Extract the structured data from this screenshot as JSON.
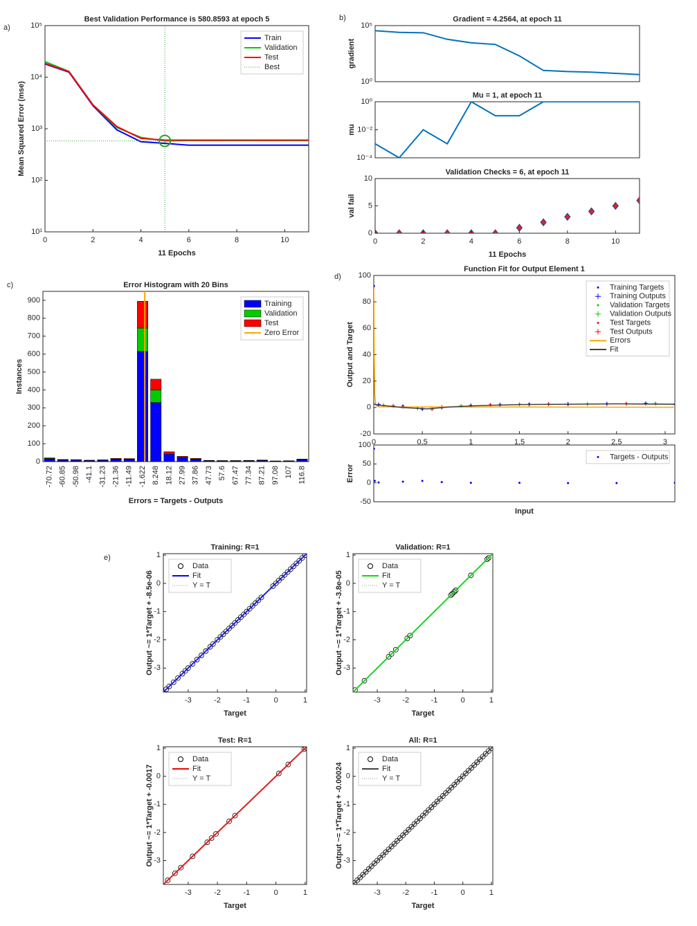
{
  "panel_labels": [
    "a)",
    "b)",
    "c)",
    "d)",
    "e)"
  ],
  "chart_data": [
    {
      "type": "line",
      "title": "Best Validation Performance is 580.8593 at epoch 5",
      "xlabel": "11 Epochs",
      "ylabel": "Mean Squared Error  (mse)",
      "x": [
        0,
        1,
        2,
        3,
        4,
        5,
        6,
        7,
        8,
        9,
        10,
        11
      ],
      "xlim": [
        0,
        11
      ],
      "xticks": [
        0,
        2,
        4,
        6,
        8,
        10
      ],
      "ylog": true,
      "ylim": [
        10,
        100000
      ],
      "yticks": [
        {
          "value": 10,
          "label": "10¹"
        },
        {
          "value": 100,
          "label": "10²"
        },
        {
          "value": 1000,
          "label": "10³"
        },
        {
          "value": 10000,
          "label": "10⁴"
        },
        {
          "value": 100000,
          "label": "10⁵"
        }
      ],
      "series": [
        {
          "name": "Train",
          "color": "#0000ff",
          "values": [
            18000,
            12500,
            2800,
            950,
            560,
            520,
            480,
            480,
            480,
            480,
            480,
            480
          ]
        },
        {
          "name": "Validation",
          "color": "#00cc00",
          "values": [
            20000,
            13000,
            2900,
            1050,
            680,
            580.8593,
            590,
            590,
            590,
            590,
            590,
            590
          ]
        },
        {
          "name": "Test",
          "color": "#ff0000",
          "values": [
            18500,
            12800,
            2900,
            1100,
            650,
            600,
            600,
            600,
            600,
            600,
            600,
            600
          ]
        }
      ],
      "best": {
        "name": "Best",
        "x": 5,
        "y": 580.8593,
        "color": "#2ca02c"
      },
      "legend": "top-right"
    },
    {
      "type": "line",
      "title": "Gradient = 4.2564, at epoch 11",
      "ylabel": "gradient",
      "x": [
        0,
        1,
        2,
        3,
        4,
        5,
        6,
        7,
        8,
        9,
        10,
        11
      ],
      "xlim": [
        0,
        11
      ],
      "ylog": true,
      "ylim": [
        1,
        100000
      ],
      "yticks": [
        {
          "value": 1,
          "label": "10⁰"
        },
        {
          "value": 100000,
          "label": "10⁵"
        }
      ],
      "color": "#0072bd",
      "values": [
        35000,
        25000,
        23000,
        6000,
        2900,
        2100,
        200,
        10,
        8,
        7,
        5.5,
        4.2564
      ]
    },
    {
      "type": "line",
      "title": "Mu = 1, at epoch 11",
      "ylabel": "mu",
      "x": [
        0,
        1,
        2,
        3,
        4,
        5,
        6,
        7,
        8,
        9,
        10,
        11
      ],
      "xlim": [
        0,
        11
      ],
      "ylog": true,
      "ylim": [
        0.0001,
        1
      ],
      "yticks": [
        {
          "value": 0.0001,
          "label": "10⁻⁴"
        },
        {
          "value": 0.01,
          "label": "10⁻²"
        },
        {
          "value": 1,
          "label": "10⁰"
        }
      ],
      "color": "#0072bd",
      "values": [
        0.001,
        0.0001,
        0.01,
        0.001,
        1,
        0.1,
        0.1,
        1,
        1,
        1,
        1,
        1
      ]
    },
    {
      "type": "scatter",
      "title": "Validation Checks = 6, at epoch 11",
      "ylabel": "val fail",
      "xlabel": "11 Epochs",
      "x": [
        0,
        1,
        2,
        3,
        4,
        5,
        6,
        7,
        8,
        9,
        10,
        11
      ],
      "xlim": [
        0,
        11
      ],
      "xticks": [
        0,
        2,
        4,
        6,
        8,
        10
      ],
      "ylim": [
        0,
        10
      ],
      "yticks": [
        0,
        5,
        10
      ],
      "color": "#d62728",
      "values": [
        0,
        0,
        0,
        0,
        0,
        0,
        1,
        2,
        3,
        4,
        5,
        6
      ]
    },
    {
      "type": "bar",
      "stacked": true,
      "title": "Error Histogram with 20 Bins",
      "xlabel": "Errors = Targets - Outputs",
      "ylabel": "Instances",
      "categories": [
        "-70.72",
        "-60.85",
        "-50.98",
        "-41.1",
        "-31.23",
        "-21.36",
        "-11.49",
        "-1.622",
        "8.248",
        "18.12",
        "27.99",
        "37.86",
        "47.73",
        "57.6",
        "67.47",
        "77.34",
        "87.21",
        "97.08",
        "107",
        "116.8"
      ],
      "ylim": [
        0,
        950
      ],
      "yticks": [
        0,
        100,
        200,
        300,
        400,
        500,
        600,
        700,
        800,
        900
      ],
      "series": [
        {
          "name": "Training",
          "color": "#0000ff",
          "values": [
            15,
            8,
            8,
            6,
            7,
            12,
            12,
            615,
            330,
            42,
            22,
            12,
            5,
            4,
            4,
            5,
            6,
            2,
            3,
            10
          ]
        },
        {
          "name": "Validation",
          "color": "#00cc00",
          "values": [
            3,
            2,
            2,
            1,
            2,
            3,
            2,
            130,
            70,
            5,
            4,
            3,
            1,
            1,
            1,
            1,
            1,
            1,
            1,
            2
          ]
        },
        {
          "name": "Test",
          "color": "#ff0000",
          "values": [
            3,
            2,
            1,
            1,
            1,
            3,
            3,
            150,
            60,
            8,
            4,
            3,
            1,
            1,
            1,
            1,
            2,
            1,
            1,
            2
          ]
        }
      ],
      "zero_line": {
        "name": "Zero Error",
        "value": 0,
        "color": "#ffa500"
      },
      "legend": "top-right"
    },
    {
      "type": "fit",
      "title": "Function Fit for Output Element 1",
      "ylabel": "Output and Target",
      "xlim": [
        0,
        3.1
      ],
      "xticks": [
        0,
        {
          "value": 0.5,
          "label": "0,5"
        },
        1,
        {
          "value": 1.5,
          "label": "1,5"
        },
        2,
        {
          "value": 2.5,
          "label": "2,5"
        },
        3
      ],
      "ylim": [
        -20,
        100
      ],
      "yticks": [
        -20,
        0,
        20,
        40,
        60,
        80,
        100
      ],
      "series": [
        {
          "name": "Training Targets",
          "color": "#0000ff",
          "marker": ".",
          "x": [
            0.002,
            0.05,
            0.3,
            0.5,
            0.7,
            1.0,
            1.3,
            1.6,
            2.0,
            2.4,
            2.8,
            3.1
          ],
          "values": [
            92,
            2,
            1,
            -1,
            0,
            1.5,
            2,
            2.5,
            2.5,
            2.8,
            3,
            2.5
          ]
        },
        {
          "name": "Training Outputs",
          "color": "#0000ff",
          "marker": "+",
          "x": [
            0.05,
            0.3,
            0.5,
            0.7,
            1.0,
            1.3,
            1.6,
            2.0,
            2.4,
            2.8,
            3.1
          ],
          "values": [
            2.2,
            0.8,
            -1.2,
            0.2,
            1.4,
            2.1,
            2.4,
            2.6,
            2.7,
            3.1,
            2.4
          ]
        },
        {
          "name": "Validation Targets",
          "color": "#00cc00",
          "marker": ".",
          "x": [
            0.1,
            0.45,
            0.9,
            1.5,
            2.2,
            2.9
          ],
          "values": [
            1.5,
            -0.5,
            1,
            2.5,
            2.6,
            3
          ]
        },
        {
          "name": "Validation Outputs",
          "color": "#00cc00",
          "marker": "+",
          "x": [
            0.1,
            0.45,
            0.9,
            1.5,
            2.2,
            2.9
          ],
          "values": [
            1.7,
            -0.7,
            1.2,
            2.4,
            2.7,
            2.9
          ]
        },
        {
          "name": "Test Targets",
          "color": "#ff0000",
          "marker": ".",
          "x": [
            0.2,
            0.6,
            1.2,
            1.8,
            2.6
          ],
          "values": [
            1,
            -1,
            2,
            2.5,
            2.9
          ]
        },
        {
          "name": "Test Outputs",
          "color": "#ff0000",
          "marker": "+",
          "x": [
            0.2,
            0.6,
            1.2,
            1.8,
            2.6
          ],
          "values": [
            1.2,
            -1.2,
            1.9,
            2.6,
            2.8
          ]
        },
        {
          "name": "Errors",
          "color": "#ffa500",
          "marker": "line",
          "x": [
            0,
            0.005,
            0.01,
            0.02,
            0.05,
            3.1
          ],
          "values": [
            90,
            40,
            10,
            2,
            0.5,
            0.2
          ]
        },
        {
          "name": "Fit",
          "color": "#404040",
          "marker": "line",
          "x": [
            0,
            0.01,
            0.03,
            0.1,
            0.3,
            0.55,
            0.8,
            1.1,
            1.5,
            2,
            2.5,
            3.1
          ],
          "values": [
            3,
            2.5,
            2,
            1.5,
            0,
            -1,
            0.5,
            1.5,
            2.2,
            2.5,
            2.8,
            2.5
          ]
        }
      ],
      "legend": "top-right"
    },
    {
      "type": "fit",
      "xlabel": "Input",
      "ylabel": "Error",
      "xlim": [
        0,
        3.1
      ],
      "ylim": [
        -50,
        100
      ],
      "yticks": [
        -50,
        0,
        50,
        100
      ],
      "series": [
        {
          "name": "Targets - Outputs",
          "color": "#0000ff",
          "marker": ".",
          "x": [
            0.002,
            0.01,
            0.05,
            0.3,
            0.5,
            0.7,
            1,
            1.5,
            2,
            2.5,
            3.1
          ],
          "values": [
            90,
            5,
            1,
            3,
            5,
            2,
            0,
            0,
            -0.5,
            -0.5,
            0
          ]
        }
      ],
      "legend": "top-right"
    },
    {
      "type": "regression",
      "title": "Training: R=1",
      "xlabel": "Target",
      "ylabel": "Output ~= 1*Target + -8.5e-06",
      "xlim": [
        -3.85,
        1.05
      ],
      "ylim": [
        -3.85,
        1.05
      ],
      "xticks": [
        -3,
        -2,
        -1,
        0,
        1
      ],
      "yticks": [
        -3,
        -2,
        -1,
        0,
        1
      ],
      "series": [
        {
          "name": "Data",
          "color": "#000000",
          "marker": "o",
          "x": [
            -3.75,
            -3.65,
            -3.5,
            -3.35,
            -3.2,
            -3.1,
            -3.0,
            -2.85,
            -2.7,
            -2.55,
            -2.4,
            -2.25,
            -2.15,
            -2.0,
            -1.9,
            -1.8,
            -1.7,
            -1.6,
            -1.5,
            -1.4,
            -1.3,
            -1.2,
            -1.1,
            -1.0,
            -0.9,
            -0.8,
            -0.7,
            -0.6,
            -0.5,
            -0.1,
            0.0,
            0.1,
            0.2,
            0.3,
            0.4,
            0.5,
            0.6,
            0.7,
            0.8,
            0.9,
            1.0
          ],
          "values": [
            -3.75,
            -3.65,
            -3.5,
            -3.35,
            -3.2,
            -3.1,
            -3.0,
            -2.85,
            -2.7,
            -2.55,
            -2.4,
            -2.25,
            -2.15,
            -2.0,
            -1.9,
            -1.8,
            -1.7,
            -1.6,
            -1.5,
            -1.4,
            -1.3,
            -1.2,
            -1.1,
            -1.0,
            -0.9,
            -0.8,
            -0.7,
            -0.6,
            -0.5,
            -0.1,
            0.0,
            0.1,
            0.2,
            0.3,
            0.4,
            0.5,
            0.6,
            0.7,
            0.8,
            0.9,
            1.0
          ]
        },
        {
          "name": "Fit",
          "color": "#0000ff",
          "marker": "line"
        },
        {
          "name": "Y = T",
          "color": "#999999",
          "marker": "dotted"
        }
      ],
      "legend": "top-left"
    },
    {
      "type": "regression",
      "title": "Validation: R=1",
      "xlabel": "Target",
      "ylabel": "Output ~= 1*Target + -3.8e-05",
      "xlim": [
        -3.85,
        1.05
      ],
      "ylim": [
        -3.85,
        1.05
      ],
      "xticks": [
        -3,
        -2,
        -1,
        0,
        1
      ],
      "yticks": [
        -3,
        -2,
        -1,
        0,
        1
      ],
      "series": [
        {
          "name": "Data",
          "color": "#000000",
          "marker": "o",
          "x": [
            -3.78,
            -3.45,
            -2.6,
            -2.5,
            -2.35,
            -1.95,
            -1.85,
            -0.42,
            -0.37,
            -0.3,
            -0.25,
            0.28,
            0.85,
            0.9
          ],
          "values": [
            -3.78,
            -3.45,
            -2.6,
            -2.5,
            -2.35,
            -1.95,
            -1.85,
            -0.42,
            -0.37,
            -0.3,
            -0.25,
            0.28,
            0.85,
            0.9
          ]
        },
        {
          "name": "Fit",
          "color": "#00dd00",
          "marker": "line"
        },
        {
          "name": "Y = T",
          "color": "#999999",
          "marker": "dotted"
        }
      ],
      "legend": "top-left"
    },
    {
      "type": "regression",
      "title": "Test: R=1",
      "xlabel": "Target",
      "ylabel": "Output ~= 1*Target + -0.0017",
      "xlim": [
        -3.85,
        1.05
      ],
      "ylim": [
        -3.85,
        1.05
      ],
      "xticks": [
        -3,
        -2,
        -1,
        0,
        1
      ],
      "yticks": [
        -3,
        -2,
        -1,
        0,
        1
      ],
      "series": [
        {
          "name": "Data",
          "color": "#000000",
          "marker": "o",
          "x": [
            -3.7,
            -3.45,
            -3.25,
            -2.85,
            -2.35,
            -2.2,
            -2.05,
            -1.6,
            -1.4,
            0.1,
            0.42,
            0.97,
            1.02
          ],
          "values": [
            -3.7,
            -3.45,
            -3.25,
            -2.85,
            -2.35,
            -2.2,
            -2.05,
            -1.6,
            -1.4,
            0.1,
            0.42,
            0.97,
            1.02
          ]
        },
        {
          "name": "Fit",
          "color": "#ee0000",
          "marker": "line"
        },
        {
          "name": "Y = T",
          "color": "#999999",
          "marker": "dotted"
        }
      ],
      "legend": "top-left"
    },
    {
      "type": "regression",
      "title": "All: R=1",
      "xlabel": "Target",
      "ylabel": "Output ~= 1*Target + -0.00024",
      "xlim": [
        -3.85,
        1.05
      ],
      "ylim": [
        -3.85,
        1.05
      ],
      "xticks": [
        -3,
        -2,
        -1,
        0,
        1
      ],
      "yticks": [
        -3,
        -2,
        -1,
        0,
        1
      ],
      "series": [
        {
          "name": "Data",
          "color": "#000000",
          "marker": "o",
          "x": [
            -3.8,
            -3.7,
            -3.6,
            -3.5,
            -3.4,
            -3.3,
            -3.2,
            -3.1,
            -3.0,
            -2.9,
            -2.8,
            -2.7,
            -2.6,
            -2.5,
            -2.4,
            -2.3,
            -2.2,
            -2.1,
            -2.0,
            -1.9,
            -1.8,
            -1.7,
            -1.6,
            -1.5,
            -1.4,
            -1.3,
            -1.2,
            -1.1,
            -1.0,
            -0.9,
            -0.8,
            -0.7,
            -0.6,
            -0.5,
            -0.4,
            -0.3,
            -0.2,
            -0.1,
            0.0,
            0.1,
            0.2,
            0.3,
            0.4,
            0.5,
            0.6,
            0.7,
            0.8,
            0.9,
            1.0
          ],
          "values": [
            -3.8,
            -3.7,
            -3.6,
            -3.5,
            -3.4,
            -3.3,
            -3.2,
            -3.1,
            -3.0,
            -2.9,
            -2.8,
            -2.7,
            -2.6,
            -2.5,
            -2.4,
            -2.3,
            -2.2,
            -2.1,
            -2.0,
            -1.9,
            -1.8,
            -1.7,
            -1.6,
            -1.5,
            -1.4,
            -1.3,
            -1.2,
            -1.1,
            -1.0,
            -0.9,
            -0.8,
            -0.7,
            -0.6,
            -0.5,
            -0.4,
            -0.3,
            -0.2,
            -0.1,
            0.0,
            0.1,
            0.2,
            0.3,
            0.4,
            0.5,
            0.6,
            0.7,
            0.8,
            0.9,
            1.0
          ]
        },
        {
          "name": "Fit",
          "color": "#404040",
          "marker": "line"
        },
        {
          "name": "Y = T",
          "color": "#999999",
          "marker": "dotted"
        }
      ],
      "legend": "top-left"
    }
  ]
}
